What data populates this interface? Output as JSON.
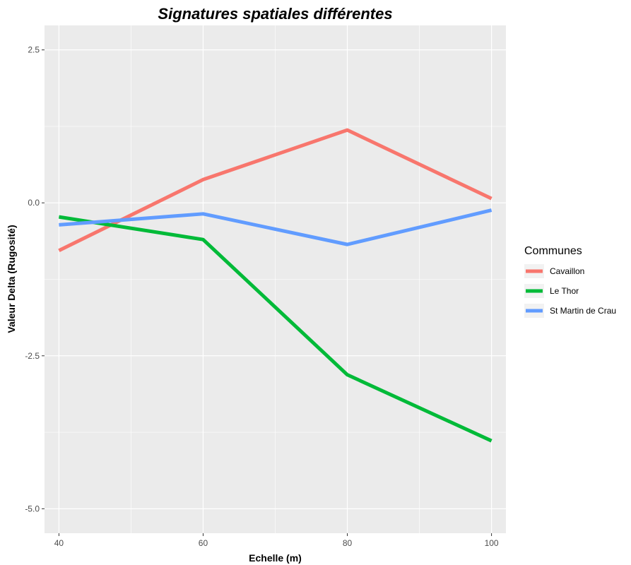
{
  "chart_data": {
    "type": "line",
    "title": "Signatures spatiales différentes",
    "xlabel": "Echelle (m)",
    "ylabel": "Valeur Delta (Rugosité)",
    "x": [
      40,
      60,
      80,
      100
    ],
    "xlim": [
      38,
      102
    ],
    "ylim": [
      -5.4,
      2.9
    ],
    "x_ticks": [
      40,
      60,
      80,
      100
    ],
    "x_tick_labels": [
      "40",
      "60",
      "80",
      "100"
    ],
    "x_minor_ticks": [
      50,
      70,
      90
    ],
    "y_ticks": [
      2.5,
      0,
      -2.5,
      -5
    ],
    "y_tick_labels": [
      "2.5",
      "0.0",
      "-2.5",
      "-5.0"
    ],
    "y_minor_ticks": [
      1.25,
      -1.25,
      -3.75
    ],
    "grid": true,
    "legend_title": "Communes",
    "legend_position": "right",
    "series": [
      {
        "name": "Cavaillon",
        "color": "#F8766D",
        "values": [
          -0.78,
          0.38,
          1.19,
          0.07
        ]
      },
      {
        "name": "Le Thor",
        "color": "#00BA38",
        "values": [
          -0.23,
          -0.6,
          -2.81,
          -3.89
        ]
      },
      {
        "name": "St Martin de Crau",
        "color": "#619CFF",
        "values": [
          -0.36,
          -0.18,
          -0.68,
          -0.12
        ]
      }
    ]
  },
  "colors": {
    "panel_background": "#EBEBEB",
    "grid": "#FFFFFF"
  }
}
